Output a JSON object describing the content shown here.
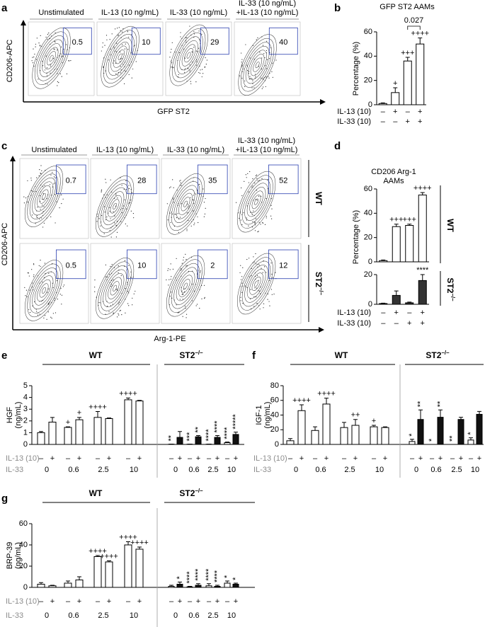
{
  "flow_a": {
    "panel": "a",
    "titles": [
      [
        "Unstimulated"
      ],
      [
        "IL-13 (10 ng/mL)"
      ],
      [
        "IL-33 (10 ng/mL)"
      ],
      [
        "IL-33 (10 ng/mL)",
        "+IL-13 (10 ng/mL)"
      ]
    ],
    "y_label": "CD206-APC",
    "x_label": "GFP ST2",
    "gates": [
      0.5,
      10,
      29,
      40
    ]
  },
  "flow_c": {
    "panel": "c",
    "titles": [
      [
        "Unstimulated"
      ],
      [
        "IL-13 (10 ng/mL)"
      ],
      [
        "IL-33 (10 ng/mL)"
      ],
      [
        "IL-33 (10 ng/mL)",
        "+IL-13 (10 ng/mL)"
      ]
    ],
    "y_label": "CD206-APC",
    "x_label": "Arg-1-PE",
    "rows": [
      {
        "label": "WT",
        "gates": [
          0.7,
          28,
          35,
          52
        ]
      },
      {
        "label": "ST2",
        "label_sup": "–/–",
        "gates": [
          0.5,
          10,
          2,
          12
        ]
      }
    ]
  },
  "chart_data": [
    {
      "type": "bar",
      "panel": "b",
      "title": "GFP ST2 AAMs",
      "y_label": "Percentage (%)",
      "ylim": [
        0,
        60
      ],
      "yticks": [
        0,
        20,
        40,
        60
      ],
      "color": "#ffffff",
      "annotation_color": "#000000",
      "values": [
        1,
        10,
        36,
        50
      ],
      "errors": [
        0.5,
        4,
        3,
        5
      ],
      "annotations": [
        null,
        "+",
        "+++",
        "++++"
      ],
      "comparison_label": "0.027",
      "comparison_color": "#1f5fa8",
      "treatments": [
        {
          "label": "IL-13 (10)",
          "signs": [
            "–",
            "+",
            "–",
            "+"
          ]
        },
        {
          "label": "IL-33 (10)",
          "signs": [
            "–",
            "–",
            "+",
            "+"
          ]
        }
      ]
    },
    {
      "type": "bar",
      "panel": "d",
      "title_lines": [
        "CD206 Arg-1",
        "AAMs"
      ],
      "y_label": "Percentage (%)",
      "row_label": "WT",
      "ylim": [
        0,
        60
      ],
      "yticks": [
        0,
        20,
        40,
        60
      ],
      "color": "#ffffff",
      "annotation_color": "#000000",
      "values": [
        1,
        29,
        30,
        55
      ],
      "errors": [
        0.5,
        2,
        1,
        2
      ],
      "annotations": [
        null,
        "+++",
        "+++",
        "++++"
      ]
    },
    {
      "type": "bar",
      "row_label": "ST2",
      "row_label_sup": "–/–",
      "ylim": [
        0,
        20
      ],
      "yticks": [
        0,
        20
      ],
      "color": "#333333",
      "annotation_color": "#000000",
      "values": [
        0.5,
        6,
        1,
        16
      ],
      "errors": [
        0.3,
        3,
        0.5,
        4
      ],
      "annotations": [
        null,
        null,
        null,
        "****"
      ],
      "treatments": [
        {
          "label": "IL-13 (10)",
          "signs": [
            "–",
            "+",
            "–",
            "+"
          ]
        },
        {
          "label": "IL-33 (10)",
          "signs": [
            "–",
            "–",
            "+",
            "+"
          ]
        }
      ]
    },
    {
      "type": "dose_bar",
      "panel": "e",
      "y_label": [
        "HGF",
        "(ng/mL)"
      ],
      "ylim": [
        0,
        5
      ],
      "yticks": [
        0,
        1,
        2,
        3,
        4,
        5
      ],
      "annotation_color": "#8c8c8c",
      "groups": [
        {
          "name": "WT",
          "colors": [
            "#ffffff",
            "#ffffff"
          ],
          "values": [
            1.0,
            1.9,
            1.45,
            2.1,
            2.3,
            2.2,
            3.8,
            3.7
          ],
          "errors": [
            0.1,
            0.4,
            0.05,
            0.2,
            0.5,
            0.05,
            0.15,
            0.05
          ],
          "annotations": [
            null,
            null,
            "+",
            "+",
            "++++",
            null,
            "++++",
            null
          ]
        },
        {
          "name": "ST2",
          "name_sup": "–/–",
          "colors": [
            "#ffffff",
            "#111111"
          ],
          "annotation_vertical": true,
          "values": [
            0.02,
            0.6,
            0.02,
            0.65,
            0.02,
            0.6,
            0.15,
            0.85
          ],
          "errors": [
            0.01,
            0.5,
            0.01,
            0.1,
            0.01,
            0.15,
            0.05,
            0.2
          ],
          "annotations": [
            "**",
            null,
            "***",
            "**",
            "****",
            "****",
            "****",
            "*****"
          ]
        }
      ],
      "il13_label": "IL-13 (10)",
      "il13_signs": [
        "–",
        "+"
      ],
      "il33_label": "IL-33",
      "il33_doses": [
        0,
        0.6,
        2.5,
        10
      ]
    },
    {
      "type": "dose_bar",
      "panel": "f",
      "y_label": [
        "IGF-1",
        "(ng/mL)"
      ],
      "ylim": [
        0,
        80
      ],
      "yticks": [
        0,
        20,
        40,
        60,
        80
      ],
      "annotation_color": "#8c8c8c",
      "groups": [
        {
          "name": "WT",
          "colors": [
            "#ffffff",
            "#ffffff"
          ],
          "values": [
            5,
            46,
            19,
            55,
            23,
            26,
            24,
            23
          ],
          "errors": [
            3,
            8,
            5,
            8,
            7,
            8,
            2,
            1
          ],
          "annotations": [
            null,
            "++++",
            null,
            "++++",
            null,
            "++",
            "+",
            null
          ]
        },
        {
          "name": "ST2",
          "name_sup": "–/–",
          "colors": [
            "#ffffff",
            "#111111"
          ],
          "annotation_vertical": true,
          "values": [
            4,
            34,
            0,
            37,
            0,
            34,
            6,
            41
          ],
          "errors": [
            3,
            13,
            0,
            10,
            0,
            3,
            3,
            4
          ],
          "annotations": [
            "*",
            "**",
            "*",
            "**",
            "**",
            null,
            "*",
            null
          ]
        }
      ],
      "il13_label": "IL-13 (10)",
      "il13_signs": [
        "–",
        "+"
      ],
      "il33_label": "IL-33",
      "il33_doses": [
        0,
        0.6,
        2.5,
        10
      ]
    },
    {
      "type": "dose_bar",
      "panel": "g",
      "y_label": [
        "BRP-39",
        "(ng/mL)"
      ],
      "ylim": [
        0,
        60
      ],
      "yticks": [
        0,
        20,
        40,
        60
      ],
      "annotation_color": "#8c8c8c",
      "groups": [
        {
          "name": "WT",
          "colors": [
            "#ffffff",
            "#ffffff"
          ],
          "values": [
            3,
            1.5,
            4,
            7,
            29,
            24,
            40,
            36
          ],
          "errors": [
            1.5,
            0.5,
            2,
            3,
            1,
            1,
            3,
            2
          ],
          "annotations": [
            null,
            null,
            null,
            null,
            "++++",
            "++++",
            "++++",
            "++++"
          ]
        },
        {
          "name": "ST2",
          "name_sup": "–/–",
          "colors": [
            "#ffffff",
            "#111111"
          ],
          "annotation_vertical": true,
          "values": [
            1,
            3,
            0.5,
            2,
            1.5,
            1,
            4,
            3
          ],
          "errors": [
            1,
            2,
            0.5,
            1.5,
            2,
            1,
            2,
            1
          ],
          "annotations": [
            null,
            "*",
            "****",
            "****",
            "****",
            "****",
            "*",
            "*"
          ]
        }
      ],
      "il13_label": "IL-13 (10)",
      "il13_signs": [
        "–",
        "+"
      ],
      "il33_label": "IL-33",
      "il33_doses": [
        0,
        0.6,
        2.5,
        10
      ]
    }
  ]
}
